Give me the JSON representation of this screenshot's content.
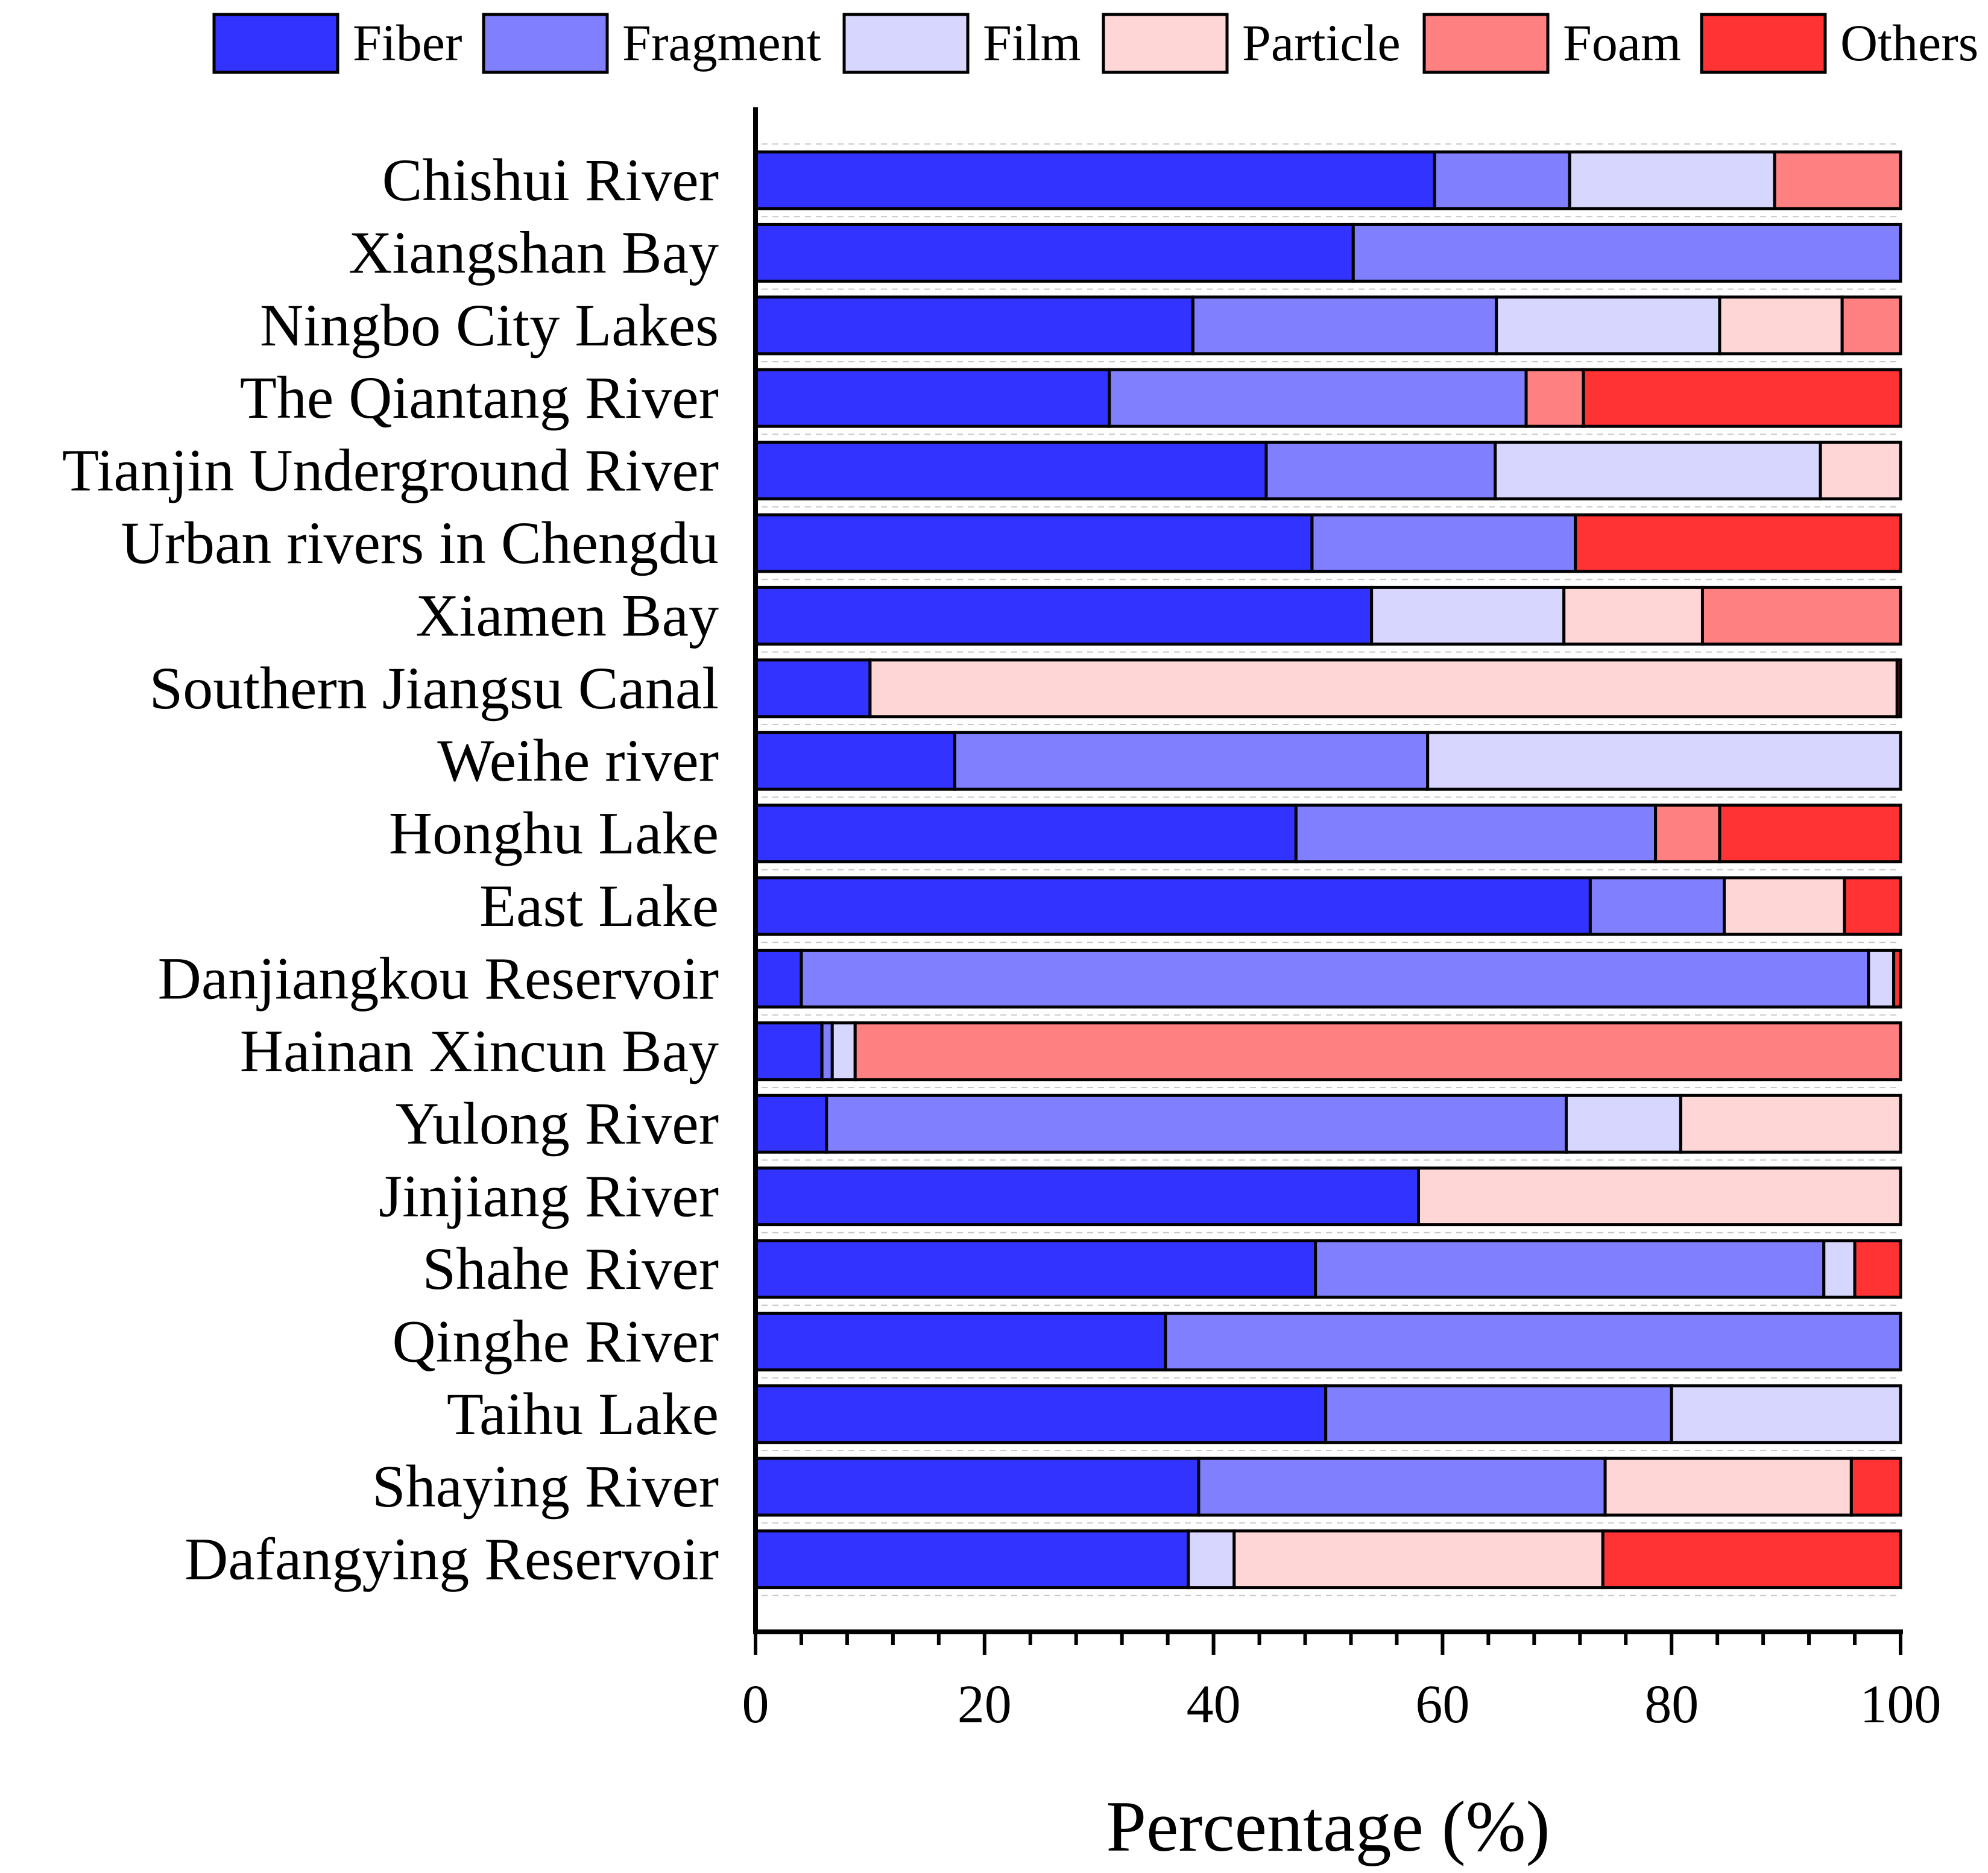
{
  "chart_data": {
    "type": "bar",
    "orientation": "horizontal",
    "stacked": true,
    "title": "",
    "xlabel": "Percentage (%)",
    "ylabel": "",
    "xlim": [
      0,
      100
    ],
    "xticks": [
      "0",
      "20",
      "40",
      "60",
      "80",
      "100"
    ],
    "grid": false,
    "legend_position": "top",
    "categories": [
      "Chishui River",
      "Xiangshan Bay",
      "Ningbo City Lakes",
      "The Qiantang River",
      "Tianjin Underground River",
      "Urban rivers in Chengdu",
      "Xiamen Bay",
      "Southern Jiangsu Canal",
      "Weihe river",
      "Honghu Lake",
      "East Lake",
      "Danjiangkou Reservoir",
      "Hainan Xincun Bay",
      "Yulong River",
      "Jinjiang River",
      "Shahe River",
      "Qinghe River",
      "Taihu Lake",
      "Shaying River",
      "Dafangying Reservoir"
    ],
    "series": [
      {
        "name": "Fiber",
        "color": "#3333FF",
        "values": [
          59.3,
          52.2,
          38.2,
          30.9,
          44.6,
          48.6,
          53.8,
          10.0,
          17.4,
          47.2,
          72.9,
          4.0,
          5.8,
          6.2,
          57.9,
          48.9,
          35.8,
          49.8,
          38.7,
          37.8
        ]
      },
      {
        "name": "Fragment",
        "color": "#8080FF",
        "values": [
          11.8,
          47.8,
          26.5,
          36.4,
          20.0,
          23.0,
          0,
          0,
          41.3,
          31.4,
          11.7,
          93.2,
          0.9,
          64.6,
          0,
          44.4,
          64.2,
          30.2,
          35.5,
          0
        ]
      },
      {
        "name": "Film",
        "color": "#D6D6FF",
        "values": [
          17.9,
          0,
          19.5,
          0,
          28.4,
          0,
          16.8,
          0,
          41.3,
          0,
          0,
          2.2,
          2.0,
          10.0,
          0,
          2.7,
          0,
          20.0,
          0,
          4.0
        ]
      },
      {
        "name": "Particle",
        "color": "#FFD6D6",
        "values": [
          0,
          0,
          10.7,
          0,
          7.0,
          0,
          12.1,
          89.7,
          0,
          0,
          10.5,
          0,
          0,
          19.2,
          42.1,
          0,
          0,
          0,
          21.5,
          32.2
        ]
      },
      {
        "name": "Foam",
        "color": "#FF8080",
        "values": [
          11.0,
          0,
          5.1,
          5.0,
          0,
          0,
          17.3,
          0,
          0,
          5.6,
          0,
          0,
          91.3,
          0,
          0,
          0,
          0,
          0,
          0,
          0
        ]
      },
      {
        "name": "Others",
        "color": "#FF3333",
        "values": [
          0,
          0,
          0,
          27.7,
          0,
          28.4,
          0,
          0.3,
          0,
          15.8,
          4.9,
          0.6,
          0,
          0,
          0,
          4.0,
          0,
          0,
          4.3,
          26.0
        ]
      }
    ]
  }
}
